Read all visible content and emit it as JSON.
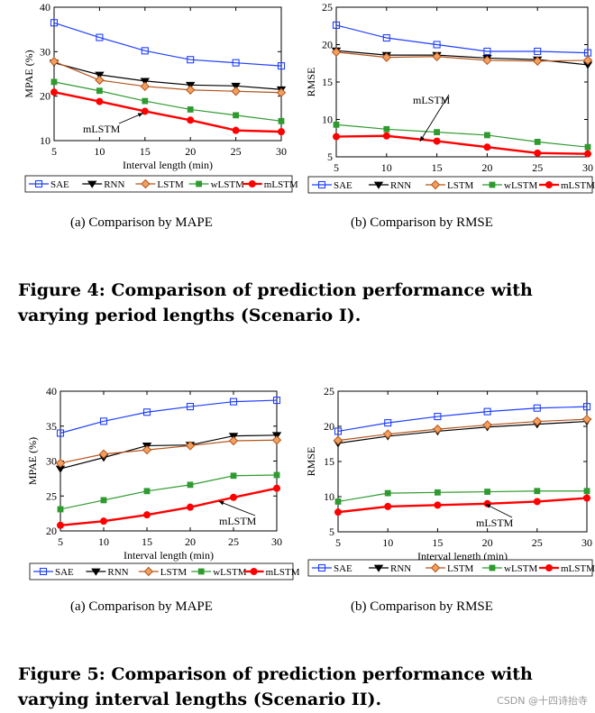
{
  "figures": [
    {
      "caption": "Figure 4: Comparison of prediction performance with varying period lengths (Scenario I).",
      "subcaptions": [
        "(a)  Comparison by MAPE",
        "(b)  Comparison by RMSE"
      ]
    },
    {
      "caption": "Figure 5: Comparison of prediction performance with varying interval lengths (Scenario II).",
      "subcaptions": [
        "(a)  Comparison by MAPE",
        "(b)  Comparison by RMSE"
      ]
    }
  ],
  "watermark": "CSDN @十四诗抬寺",
  "colors": {
    "SAE": "#1f3fff",
    "RNN": "#000000",
    "LSTM": "#b5541a",
    "wLSTM": "#2f9a2f",
    "mLSTM": "#ff0000"
  },
  "chart_data": [
    {
      "type": "line",
      "figure": "Figure 4",
      "panel": "(a)",
      "xlabel": "Interval length (min)",
      "ylabel": "MPAE (%)",
      "x": [
        5,
        10,
        15,
        20,
        25,
        30
      ],
      "xlim": [
        5,
        30
      ],
      "ylim": [
        10,
        40
      ],
      "xticks": [
        5,
        10,
        15,
        20,
        25,
        30
      ],
      "yticks": [
        10,
        20,
        30,
        40
      ],
      "grid": false,
      "legend": "below",
      "series": [
        {
          "name": "SAE",
          "values": [
            36.5,
            33.2,
            30.2,
            28.2,
            27.5,
            26.8
          ]
        },
        {
          "name": "RNN",
          "values": [
            27.5,
            24.8,
            23.4,
            22.5,
            22.3,
            21.5
          ]
        },
        {
          "name": "LSTM",
          "values": [
            27.8,
            23.6,
            22.2,
            21.4,
            21.1,
            20.8
          ]
        },
        {
          "name": "wLSTM",
          "values": [
            23.2,
            21.2,
            18.9,
            17.0,
            15.7,
            14.4
          ]
        },
        {
          "name": "mLSTM",
          "values": [
            20.9,
            18.8,
            16.6,
            14.6,
            12.3,
            12.0
          ]
        }
      ],
      "annotation": {
        "text": "mLSTM",
        "target": [
          15,
          16.6
        ]
      }
    },
    {
      "type": "line",
      "figure": "Figure 4",
      "panel": "(b)",
      "xlabel": "Interval length (min)",
      "ylabel": "RMSE",
      "x": [
        5,
        10,
        15,
        20,
        25,
        30
      ],
      "xlim": [
        5,
        30
      ],
      "ylim": [
        5,
        25
      ],
      "xticks": [
        5,
        10,
        15,
        20,
        25,
        30
      ],
      "yticks": [
        5,
        10,
        15,
        20,
        25
      ],
      "grid": false,
      "legend": "below",
      "series": [
        {
          "name": "SAE",
          "values": [
            22.6,
            20.9,
            20.0,
            19.1,
            19.1,
            18.9
          ]
        },
        {
          "name": "RNN",
          "values": [
            19.2,
            18.6,
            18.6,
            18.2,
            18.0,
            17.3
          ]
        },
        {
          "name": "LSTM",
          "values": [
            19.0,
            18.3,
            18.4,
            17.9,
            17.8,
            17.9
          ]
        },
        {
          "name": "wLSTM",
          "values": [
            9.3,
            8.7,
            8.3,
            7.9,
            7.0,
            6.3
          ]
        },
        {
          "name": "mLSTM",
          "values": [
            7.7,
            7.8,
            7.1,
            6.3,
            5.5,
            5.4
          ]
        }
      ],
      "annotation": {
        "text": "mLSTM",
        "target": [
          13.5,
          7.3
        ]
      }
    },
    {
      "type": "line",
      "figure": "Figure 5",
      "panel": "(a)",
      "xlabel": "Interval length (min)",
      "ylabel": "MPAE (%)",
      "x": [
        5,
        10,
        15,
        20,
        25,
        30
      ],
      "xlim": [
        5,
        30
      ],
      "ylim": [
        20,
        40
      ],
      "xticks": [
        5,
        10,
        15,
        20,
        25,
        30
      ],
      "yticks": [
        20,
        25,
        30,
        35,
        40
      ],
      "grid": false,
      "legend": "below",
      "series": [
        {
          "name": "SAE",
          "values": [
            34.0,
            35.7,
            37.0,
            37.8,
            38.5,
            38.7
          ]
        },
        {
          "name": "RNN",
          "values": [
            28.9,
            30.5,
            32.2,
            32.3,
            33.6,
            33.7
          ]
        },
        {
          "name": "LSTM",
          "values": [
            29.7,
            31.0,
            31.6,
            32.2,
            32.9,
            33.0
          ]
        },
        {
          "name": "wLSTM",
          "values": [
            23.1,
            24.4,
            25.7,
            26.6,
            27.9,
            28.0
          ]
        },
        {
          "name": "mLSTM",
          "values": [
            20.8,
            21.4,
            22.3,
            23.4,
            24.8,
            26.1
          ]
        }
      ],
      "annotation": {
        "text": "mLSTM",
        "target": [
          23.5,
          24.5
        ]
      }
    },
    {
      "type": "line",
      "figure": "Figure 5",
      "panel": "(b)",
      "xlabel": "Interval length (min)",
      "ylabel": "RMSE",
      "x": [
        5,
        10,
        15,
        20,
        25,
        30
      ],
      "xlim": [
        5,
        30
      ],
      "ylim": [
        5,
        25
      ],
      "xticks": [
        5,
        10,
        15,
        20,
        25,
        30
      ],
      "yticks": [
        5,
        10,
        15,
        20,
        25
      ],
      "grid": false,
      "legend": "below",
      "series": [
        {
          "name": "SAE",
          "values": [
            19.3,
            20.5,
            21.4,
            22.1,
            22.6,
            22.8
          ]
        },
        {
          "name": "RNN",
          "values": [
            17.6,
            18.6,
            19.3,
            19.9,
            20.3,
            20.7
          ]
        },
        {
          "name": "LSTM",
          "values": [
            18.0,
            18.9,
            19.6,
            20.2,
            20.7,
            21.0
          ]
        },
        {
          "name": "wLSTM",
          "values": [
            9.3,
            10.5,
            10.6,
            10.7,
            10.8,
            10.8
          ]
        },
        {
          "name": "mLSTM",
          "values": [
            7.8,
            8.6,
            8.8,
            9.0,
            9.3,
            9.8
          ]
        }
      ],
      "annotation": {
        "text": "mLSTM",
        "target": [
          20,
          9.2
        ]
      }
    }
  ]
}
